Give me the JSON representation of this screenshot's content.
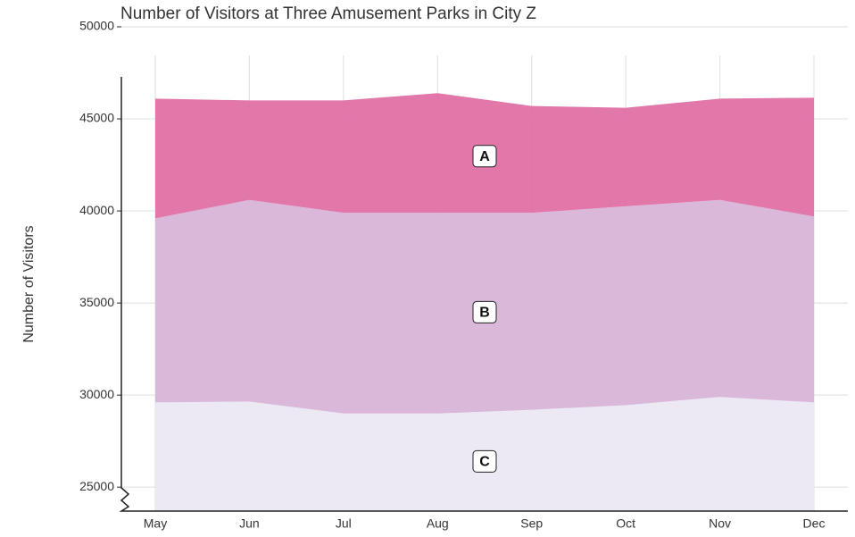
{
  "chart_data": {
    "type": "area",
    "title": "Number of Visitors at Three Amusement Parks in City Z",
    "y_label": "Number of Visitors",
    "categories": [
      "May",
      "Jun",
      "Jul",
      "Aug",
      "Sep",
      "Oct",
      "Nov",
      "Dec"
    ],
    "series": [
      {
        "name": "A",
        "color": "#e070a5",
        "values": [
          6500,
          5400,
          6100,
          6500,
          5800,
          5350,
          5500,
          6450
        ]
      },
      {
        "name": "B",
        "color": "#d8b4d8",
        "values": [
          10000,
          10950,
          10900,
          10900,
          10700,
          10800,
          10700,
          10100
        ]
      },
      {
        "name": "C",
        "color": "#ebe7f3",
        "values": [
          29600,
          29650,
          29000,
          29000,
          29200,
          29450,
          29900,
          29600
        ]
      }
    ],
    "ylim": [
      23700,
      50000
    ],
    "yticks": [
      25000,
      30000,
      35000,
      40000,
      45000,
      50000
    ],
    "grid": true,
    "stacked": true
  }
}
